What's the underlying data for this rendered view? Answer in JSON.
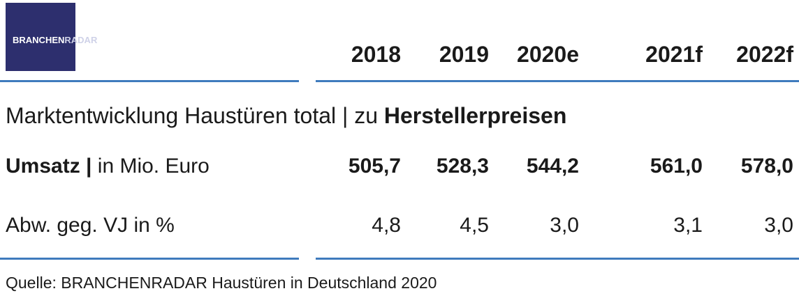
{
  "logo": {
    "prefix": "BRANCHEN",
    "suffix": "RADAR"
  },
  "chart_data": {
    "type": "table",
    "columns": [
      "2018",
      "2019",
      "2020e",
      "2021f",
      "2022f"
    ],
    "title_regular": "Marktentwicklung Haustüren total | zu ",
    "title_bold": "Herstellerpreisen",
    "rows": [
      {
        "label_bold": "Umsatz |",
        "label_regular": " in Mio. Euro",
        "values": [
          "505,7",
          "528,3",
          "544,2",
          "561,0",
          "578,0"
        ]
      },
      {
        "label_bold": "",
        "label_regular": "Abw. geg. VJ in %",
        "values": [
          "4,8",
          "4,5",
          "3,0",
          "3,1",
          "3,0"
        ]
      }
    ],
    "source": "Quelle: BRANCHENRADAR Haustüren in Deutschland 2020"
  }
}
